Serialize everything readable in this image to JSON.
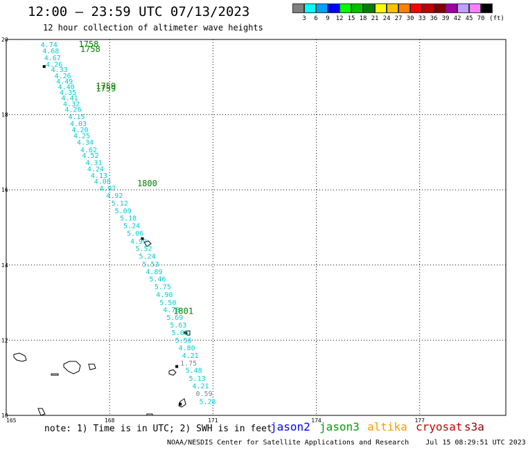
{
  "header": {
    "title": "12:00 — 23:59 UTC 07/13/2023",
    "subtitle": "12 hour collection of altimeter wave heights"
  },
  "legend": {
    "colors": [
      "#808080",
      "#00ffff",
      "#00a0ff",
      "#0000ff",
      "#00ff00",
      "#00c000",
      "#008000",
      "#ffff00",
      "#ffc000",
      "#ff8000",
      "#ff0000",
      "#c00000",
      "#800000",
      "#a000a0",
      "#c0a0ff",
      "#ff80ff",
      "#000000"
    ],
    "labels": [
      "3",
      "6",
      "9",
      "12",
      "15",
      "18",
      "21",
      "24",
      "27",
      "30",
      "33",
      "36",
      "39",
      "42",
      "45",
      "70",
      "(ft)"
    ]
  },
  "map": {
    "lat_range": [
      10,
      20
    ],
    "lon_range": [
      165,
      179.5
    ],
    "lat_ticks": [
      10,
      12,
      14,
      16,
      18,
      20
    ],
    "lon_ticks": [
      165,
      168,
      171,
      174,
      177
    ],
    "time_labels": [
      {
        "text": "1758",
        "lon": 167.1,
        "lat": 19.8
      },
      {
        "text": "1758",
        "lon": 167.15,
        "lat": 19.67
      },
      {
        "text": "1759",
        "lon": 167.6,
        "lat": 18.68
      },
      {
        "text": "1759",
        "lon": 167.6,
        "lat": 18.62
      },
      {
        "text": "1800",
        "lon": 168.8,
        "lat": 16.1
      },
      {
        "text": "1801",
        "lon": 169.85,
        "lat": 12.7
      }
    ],
    "swh_points": [
      {
        "v": "4.74",
        "lon": 166.0,
        "lat": 19.8
      },
      {
        "v": "4.68",
        "lon": 166.05,
        "lat": 19.63
      },
      {
        "v": "4.67",
        "lon": 166.1,
        "lat": 19.45
      },
      {
        "v": "4.26",
        "lon": 166.15,
        "lat": 19.27
      },
      {
        "v": "4.33",
        "lon": 166.3,
        "lat": 19.13
      },
      {
        "v": "4.26",
        "lon": 166.4,
        "lat": 18.97
      },
      {
        "v": "4.49",
        "lon": 166.45,
        "lat": 18.82
      },
      {
        "v": "4.40",
        "lon": 166.5,
        "lat": 18.67
      },
      {
        "v": "4.35",
        "lon": 166.55,
        "lat": 18.53
      },
      {
        "v": "4.41",
        "lon": 166.6,
        "lat": 18.38
      },
      {
        "v": "4.32",
        "lon": 166.65,
        "lat": 18.22
      },
      {
        "v": "4.26",
        "lon": 166.7,
        "lat": 18.08
      },
      {
        "v": "4.15",
        "lon": 166.8,
        "lat": 17.88
      },
      {
        "v": "4.03",
        "lon": 166.85,
        "lat": 17.7
      },
      {
        "v": "4.20",
        "lon": 166.9,
        "lat": 17.53
      },
      {
        "v": "4.25",
        "lon": 166.95,
        "lat": 17.38
      },
      {
        "v": "4.34",
        "lon": 167.05,
        "lat": 17.2
      },
      {
        "v": "4.62",
        "lon": 167.15,
        "lat": 17.0
      },
      {
        "v": "4.52",
        "lon": 167.2,
        "lat": 16.85
      },
      {
        "v": "4.31",
        "lon": 167.3,
        "lat": 16.66
      },
      {
        "v": "4.24",
        "lon": 167.35,
        "lat": 16.49
      },
      {
        "v": "4.13",
        "lon": 167.45,
        "lat": 16.32
      },
      {
        "v": "4.08",
        "lon": 167.55,
        "lat": 16.16
      },
      {
        "v": "4.97",
        "lon": 167.7,
        "lat": 15.98
      },
      {
        "v": "4.92",
        "lon": 167.9,
        "lat": 15.78
      },
      {
        "v": "5.12",
        "lon": 168.05,
        "lat": 15.58
      },
      {
        "v": "5.09",
        "lon": 168.15,
        "lat": 15.38
      },
      {
        "v": "5.18",
        "lon": 168.3,
        "lat": 15.18
      },
      {
        "v": "5.24",
        "lon": 168.4,
        "lat": 14.98
      },
      {
        "v": "5.06",
        "lon": 168.5,
        "lat": 14.78
      },
      {
        "v": "4.99",
        "lon": 168.6,
        "lat": 14.57
      },
      {
        "v": "5.52",
        "lon": 168.75,
        "lat": 14.37
      },
      {
        "v": "5.24",
        "lon": 168.85,
        "lat": 14.17
      },
      {
        "v": "5.53",
        "lon": 168.95,
        "lat": 13.96
      },
      {
        "v": "4.89",
        "lon": 169.05,
        "lat": 13.76
      },
      {
        "v": "5.46",
        "lon": 169.15,
        "lat": 13.56
      },
      {
        "v": "5.75",
        "lon": 169.3,
        "lat": 13.36
      },
      {
        "v": "4.90",
        "lon": 169.35,
        "lat": 13.15
      },
      {
        "v": "5.50",
        "lon": 169.45,
        "lat": 12.94
      },
      {
        "v": "4.78",
        "lon": 169.55,
        "lat": 12.74
      },
      {
        "v": "5.69",
        "lon": 169.65,
        "lat": 12.54
      },
      {
        "v": "5.63",
        "lon": 169.75,
        "lat": 12.34
      },
      {
        "v": "5.08",
        "lon": 169.8,
        "lat": 12.14
      },
      {
        "v": "5.56",
        "lon": 169.9,
        "lat": 11.93
      },
      {
        "v": "4.80",
        "lon": 170.0,
        "lat": 11.73
      },
      {
        "v": "4.21",
        "lon": 170.1,
        "lat": 11.53
      },
      {
        "v": "5.48",
        "lon": 170.2,
        "lat": 11.13
      },
      {
        "v": "5.13",
        "lon": 170.3,
        "lat": 10.92
      },
      {
        "v": "4.21",
        "lon": 170.4,
        "lat": 10.72
      },
      {
        "v": "5.28",
        "lon": 170.6,
        "lat": 10.3
      }
    ],
    "gray_points": [
      {
        "v": "1.75",
        "lon": 170.05,
        "lat": 11.33
      },
      {
        "v": "0.59",
        "lon": 170.5,
        "lat": 10.52
      }
    ],
    "islands": [
      {
        "lon": 166.1,
        "lat": 19.28
      },
      {
        "lon": 168.95,
        "lat": 14.7
      },
      {
        "lon": 170.2,
        "lat": 12.2
      },
      {
        "lon": 169.95,
        "lat": 11.3
      },
      {
        "lon": 170.05,
        "lat": 10.3
      }
    ]
  },
  "footer": {
    "note": "note: 1) Time is in UTC; 2) SWH is in feet",
    "satellites": [
      {
        "name": "jason2",
        "color": "#0000ff"
      },
      {
        "name": "jason3",
        "color": "#00a000"
      },
      {
        "name": "altika",
        "color": "#ff9900"
      },
      {
        "name": "cryosat",
        "color": "#cc0000"
      },
      {
        "name": "s3a",
        "color": "#990000"
      }
    ],
    "credit": "NOAA/NESDIS Center for Satellite Applications and Research    Jul 15 08:29:51 UTC 2023"
  }
}
